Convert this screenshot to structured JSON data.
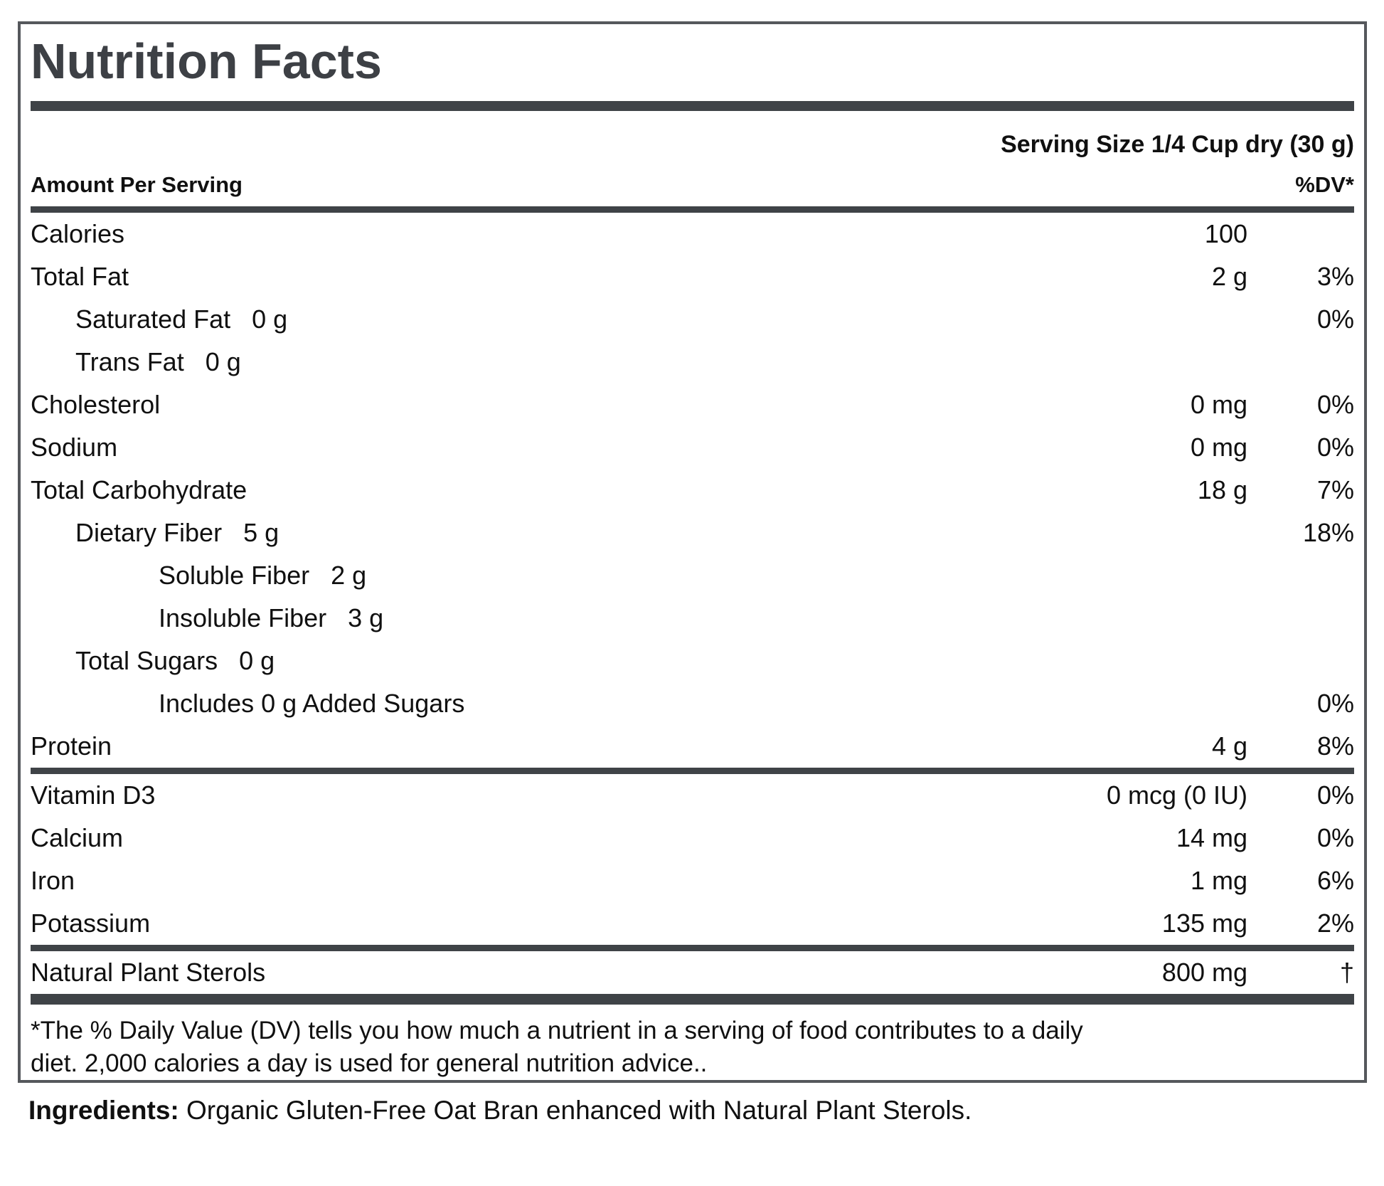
{
  "label": {
    "title": "Nutrition Facts",
    "serving_size": "Serving Size 1/4 Cup dry (30 g)",
    "header": {
      "amount_col": "Amount Per Serving",
      "dv_col": "%DV*"
    },
    "main_rows": [
      {
        "label": "Calories",
        "inline": "",
        "amount": "100",
        "dv": ""
      },
      {
        "label": "Total Fat",
        "inline": "",
        "amount": "2 g",
        "dv": "3%"
      },
      {
        "label": "Saturated Fat",
        "inline": "0 g",
        "amount": "",
        "dv": "0%"
      },
      {
        "label": "Trans Fat",
        "inline": "0 g",
        "amount": "",
        "dv": ""
      },
      {
        "label": "Cholesterol",
        "inline": "",
        "amount": "0 mg",
        "dv": "0%"
      },
      {
        "label": "Sodium",
        "inline": "",
        "amount": "0 mg",
        "dv": "0%"
      },
      {
        "label": "Total Carbohydrate",
        "inline": "",
        "amount": "18 g",
        "dv": "7%"
      },
      {
        "label": "Dietary Fiber",
        "inline": "5 g",
        "amount": "",
        "dv": "18%"
      },
      {
        "label": "Soluble Fiber",
        "inline": "2 g",
        "amount": "",
        "dv": ""
      },
      {
        "label": "Insoluble Fiber",
        "inline": "3 g",
        "amount": "",
        "dv": ""
      },
      {
        "label": "Total Sugars",
        "inline": "0 g",
        "amount": "",
        "dv": ""
      },
      {
        "label": "Includes 0 g Added Sugars",
        "inline": "",
        "amount": "",
        "dv": "0%"
      },
      {
        "label": "Protein",
        "inline": "",
        "amount": "4 g",
        "dv": "8%"
      }
    ],
    "micro_rows": [
      {
        "label": "Vitamin D3",
        "amount": "0 mcg (0 IU)",
        "dv": "0%"
      },
      {
        "label": "Calcium",
        "amount": "14 mg",
        "dv": "0%"
      },
      {
        "label": "Iron",
        "amount": "1 mg",
        "dv": "6%"
      },
      {
        "label": "Potassium",
        "amount": "135 mg",
        "dv": "2%"
      }
    ],
    "sterol_row": {
      "label": "Natural Plant Sterols",
      "amount": "800 mg",
      "dv": "†"
    },
    "footnote_line1": "*The % Daily Value (DV) tells you how much a nutrient in a serving of food contributes to a daily",
    "footnote_line2": "diet. 2,000 calories a day is used for general nutrition advice.."
  },
  "ingredients": {
    "label": "Ingredients:",
    "text": " Organic Gluten-Free Oat Bran enhanced with Natural Plant Sterols."
  },
  "colors": {
    "bar": "#3f4347",
    "title_text": "#3d4045",
    "border": "#55585c",
    "body_text": "#101010",
    "background": "#ffffff"
  }
}
